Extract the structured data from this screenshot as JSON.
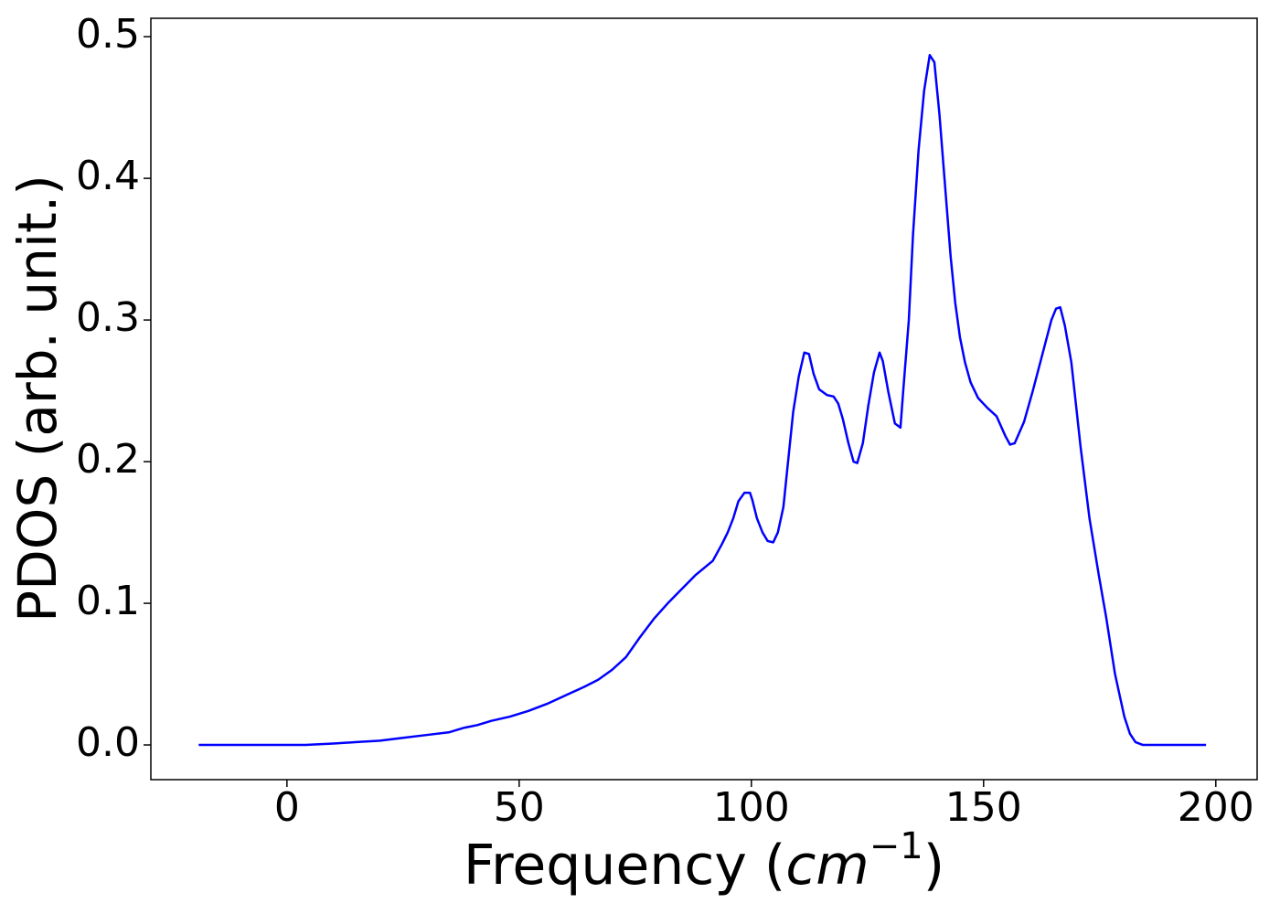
{
  "chart_data": {
    "type": "line",
    "xlabel": [
      "Frequency (",
      "cm",
      "−1",
      ")"
    ],
    "ylabel": "PDOS (arb. unit.)",
    "x": [
      -19,
      -10,
      0,
      4,
      10,
      15,
      20,
      25,
      30,
      35,
      38,
      41,
      44,
      48,
      52,
      56,
      60,
      64,
      67,
      70,
      73,
      76,
      79,
      82,
      85,
      88,
      91.7,
      93.7,
      94.9,
      96.1,
      97.2,
      98.5,
      99.7,
      100.2,
      101.2,
      102.4,
      103.5,
      104.7,
      105.7,
      106.9,
      107.9,
      109,
      110.2,
      111.4,
      112.4,
      113.4,
      114.6,
      116.3,
      117.7,
      118.7,
      119.7,
      120.9,
      122,
      122.8,
      124,
      125.2,
      126.4,
      127.6,
      128.3,
      129.5,
      130.9,
      132.1,
      132.7,
      133.9,
      134.8,
      136,
      137.2,
      138.4,
      139.4,
      140.5,
      142.9,
      143.9,
      144.9,
      146,
      147.2,
      148.8,
      150.8,
      152.8,
      154.7,
      155.7,
      156.7,
      158.7,
      160.6,
      163,
      164.6,
      165.6,
      166.5,
      167.5,
      168.9,
      170.9,
      172.8,
      174.8,
      176.4,
      178.3,
      180.3,
      181.5,
      182.7,
      184.3,
      190,
      197.9
    ],
    "series": [
      {
        "name": "PDOS",
        "color": "#0000ff",
        "values": [
          0,
          0,
          0,
          0,
          0.001,
          0.002,
          0.003,
          0.005,
          0.007,
          0.009,
          0.012,
          0.014,
          0.017,
          0.02,
          0.024,
          0.029,
          0.035,
          0.041,
          0.046,
          0.053,
          0.062,
          0.076,
          0.089,
          0.1,
          0.11,
          0.12,
          0.13,
          0.142,
          0.15,
          0.16,
          0.172,
          0.178,
          0.178,
          0.173,
          0.16,
          0.15,
          0.144,
          0.143,
          0.15,
          0.168,
          0.2,
          0.235,
          0.26,
          0.277,
          0.276,
          0.262,
          0.251,
          0.247,
          0.246,
          0.241,
          0.23,
          0.213,
          0.2,
          0.199,
          0.213,
          0.24,
          0.263,
          0.277,
          0.271,
          0.249,
          0.227,
          0.224,
          0.25,
          0.3,
          0.36,
          0.42,
          0.462,
          0.487,
          0.482,
          0.445,
          0.345,
          0.312,
          0.288,
          0.27,
          0.256,
          0.245,
          0.238,
          0.232,
          0.218,
          0.212,
          0.213,
          0.228,
          0.25,
          0.28,
          0.3,
          0.308,
          0.309,
          0.296,
          0.27,
          0.21,
          0.16,
          0.12,
          0.09,
          0.05,
          0.02,
          0.008,
          0.002,
          0,
          0,
          0
        ]
      }
    ],
    "xlim": [
      -29.3,
      208.9
    ],
    "ylim": [
      -0.0245,
      0.513
    ],
    "xticks": [
      0,
      50,
      100,
      150,
      200
    ],
    "yticks": [
      {
        "value": 0,
        "label": "0.0"
      },
      0.1,
      0.2,
      0.3,
      0.4,
      0.5
    ]
  }
}
